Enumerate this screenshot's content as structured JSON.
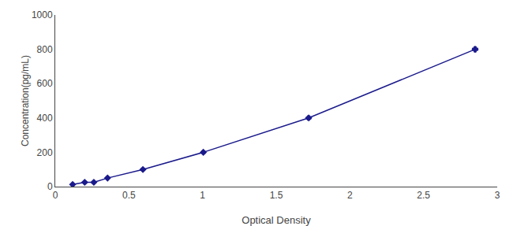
{
  "chart_data": {
    "type": "line",
    "xlabel": "Optical Density",
    "ylabel": "Concentration(pg/mL)",
    "x": [
      0.118,
      0.2,
      0.262,
      0.355,
      0.595,
      1.005,
      1.72,
      2.85
    ],
    "values": [
      12.5,
      25,
      25,
      50,
      100,
      200,
      400,
      800
    ],
    "x_errors": [
      0.005,
      0.008,
      0.008,
      0.008,
      0.01,
      0.012,
      0.015,
      0.018
    ],
    "y_errors": [
      2,
      3,
      3,
      4,
      6,
      8,
      12,
      15
    ],
    "color": "#1a1a8c",
    "marker": "diamond",
    "xlim": [
      0.0,
      3.0
    ],
    "ylim": [
      0,
      1000
    ],
    "xticks": [
      0.0,
      0.5,
      1.0,
      1.5,
      2.0,
      2.5,
      3.0
    ],
    "yticks": [
      0,
      200,
      400,
      600,
      800,
      1000
    ],
    "grid": false
  }
}
